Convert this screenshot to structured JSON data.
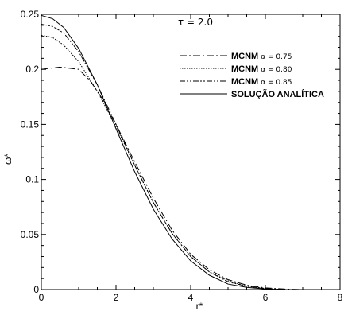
{
  "chart_data": {
    "type": "line",
    "annotation": "τ = 2.0",
    "xlabel": "r*",
    "ylabel": "ω*",
    "xlim": [
      0,
      8
    ],
    "ylim": [
      0,
      0.25
    ],
    "xticks": [
      "0",
      "2",
      "4",
      "6",
      "8"
    ],
    "yticks": [
      "0",
      "0.05",
      "0.1",
      "0.15",
      "0.2",
      "0.25"
    ],
    "grid": false,
    "legend_position": "top-right",
    "series": [
      {
        "name": "MCNM",
        "param": "α = 0.75",
        "style": "dashdot",
        "x": [
          0,
          0.5,
          1.0,
          1.3,
          1.6,
          2.0,
          2.5,
          3.0,
          3.5,
          4.0,
          4.5,
          5.0,
          5.5,
          6.0,
          6.5,
          7.0
        ],
        "y": [
          0.2,
          0.202,
          0.2,
          0.19,
          0.175,
          0.15,
          0.116,
          0.083,
          0.054,
          0.032,
          0.018,
          0.009,
          0.004,
          0.0015,
          0.0005,
          0.0
        ]
      },
      {
        "name": "MCNM",
        "param": "α = 0.80",
        "style": "dotted",
        "x": [
          0,
          0.3,
          0.6,
          1.0,
          1.5,
          2.0,
          2.5,
          3.0,
          3.5,
          4.0,
          4.5,
          5.0,
          5.5,
          6.0,
          6.5,
          7.0
        ],
        "y": [
          0.231,
          0.229,
          0.222,
          0.207,
          0.18,
          0.148,
          0.113,
          0.079,
          0.051,
          0.03,
          0.016,
          0.008,
          0.003,
          0.001,
          0.0,
          0.0
        ]
      },
      {
        "name": "MCNM",
        "param": "α = 0.85",
        "style": "dashdotdot",
        "x": [
          0,
          0.3,
          0.6,
          1.0,
          1.5,
          2.0,
          2.5,
          3.0,
          3.5,
          4.0,
          4.5,
          5.0,
          5.5,
          6.0,
          6.5,
          7.0
        ],
        "y": [
          0.241,
          0.239,
          0.233,
          0.216,
          0.186,
          0.15,
          0.113,
          0.079,
          0.051,
          0.03,
          0.016,
          0.007,
          0.003,
          0.001,
          0.0,
          0.0
        ]
      },
      {
        "name": "SOLUÇÃO ANALÍTICA",
        "param": "",
        "style": "solid",
        "x": [
          0,
          0.3,
          0.6,
          1.0,
          1.5,
          2.0,
          2.5,
          3.0,
          3.5,
          4.0,
          4.5,
          5.0,
          5.5,
          6.0,
          6.5,
          7.0
        ],
        "y": [
          0.249,
          0.246,
          0.238,
          0.219,
          0.186,
          0.146,
          0.107,
          0.073,
          0.046,
          0.026,
          0.013,
          0.005,
          0.002,
          0.0005,
          0.0,
          0.0
        ]
      }
    ]
  }
}
